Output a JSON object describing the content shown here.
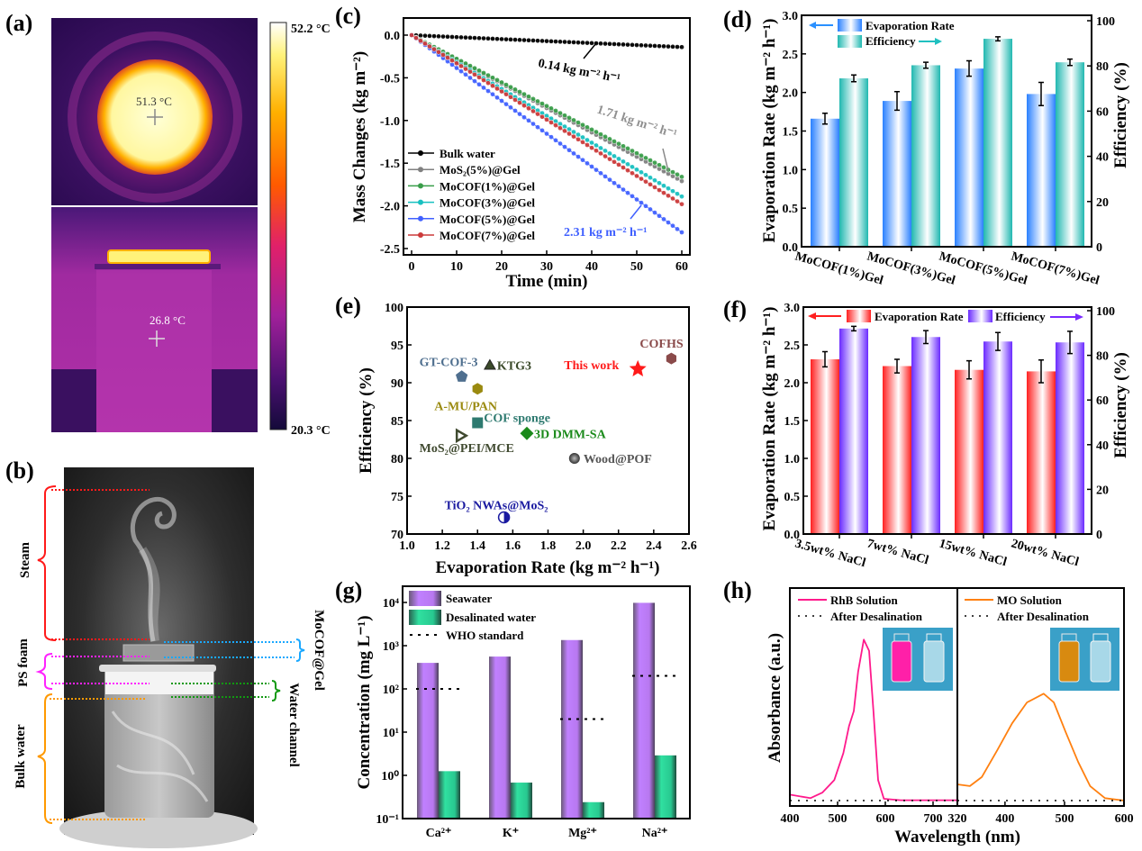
{
  "panel_labels": {
    "a": "(a)",
    "b": "(b)",
    "c": "(c)",
    "d": "(d)",
    "e": "(e)",
    "f": "(f)",
    "g": "(g)",
    "h": "(h)"
  },
  "panel_a": {
    "scale_max": "52.2 °C",
    "scale_min": "20.3 °C",
    "top_spot_temp": "51.3 °C",
    "bottom_spot_temp": "26.8 °C",
    "colormap": [
      "#ffffff",
      "#fff27a",
      "#ffb000",
      "#ff5a00",
      "#e0206a",
      "#a0209a",
      "#4a1070",
      "#140a3a"
    ]
  },
  "panel_b": {
    "labels": {
      "steam": "Steam",
      "ps_foam": "PS foam",
      "bulk_water": "Bulk water",
      "mocof_gel": "MoCOF@Gel",
      "water_channel": "Water channel"
    },
    "colors": {
      "steam": "#ff1a1a",
      "ps_foam": "#ff22ff",
      "bulk_water": "#ff9900",
      "mocof_gel": "#1aa8ff",
      "water_channel": "#119911"
    }
  },
  "chart_data": [
    {
      "panel": "c",
      "type": "line",
      "xlabel": "Time (min)",
      "ylabel": "Mass Changes (kg m⁻²)",
      "xlim": [
        0,
        60
      ],
      "ylim": [
        -2.5,
        0.1
      ],
      "xticks": [
        "0",
        "10",
        "20",
        "30",
        "40",
        "50",
        "60"
      ],
      "yticks": [
        "0.0",
        "-0.5",
        "-1.0",
        "-1.5",
        "-2.0",
        "-2.5"
      ],
      "legend_position": "bottom-left",
      "series": [
        {
          "name": "Bulk water",
          "color": "#000000",
          "x_end": 60,
          "y_end": -0.14
        },
        {
          "name": "MoS₂(5%)@Gel",
          "color": "#808080",
          "x_end": 60,
          "y_end": -1.71
        },
        {
          "name": "MoCOF(1%)@Gel",
          "color": "#3a9e4a",
          "x_end": 60,
          "y_end": -1.66
        },
        {
          "name": "MoCOF(3%)@Gel",
          "color": "#18c0c0",
          "x_end": 60,
          "y_end": -1.89
        },
        {
          "name": "MoCOF(5%)@Gel",
          "color": "#4060ff",
          "x_end": 60,
          "y_end": -2.31
        },
        {
          "name": "MoCOF(7%)@Gel",
          "color": "#cc3a3a",
          "x_end": 60,
          "y_end": -1.98
        }
      ],
      "annotations": [
        {
          "text": "0.14 kg m⁻² h⁻¹",
          "color": "#000000"
        },
        {
          "text": "1.71 kg m⁻² h⁻¹",
          "color": "#909090"
        },
        {
          "text": "2.31 kg m⁻² h⁻¹",
          "color": "#4060ff"
        }
      ]
    },
    {
      "panel": "d",
      "type": "bar",
      "categories": [
        "MoCOF(1%)Gel",
        "MoCOF(3%)Gel",
        "MoCOF(5%)Gel",
        "MoCOF(7%)Gel"
      ],
      "ylabel": "Evaporation Rate (kg m⁻² h⁻¹)",
      "y2label": "Efficiency (%)",
      "ylim": [
        0,
        3.0
      ],
      "y2lim": [
        0,
        100
      ],
      "yticks": [
        "0.0",
        "0.5",
        "1.0",
        "1.5",
        "2.0",
        "2.5",
        "3.0"
      ],
      "y2ticks": [
        "0",
        "20",
        "40",
        "60",
        "80",
        "100"
      ],
      "legend_position": "top-left",
      "series": [
        {
          "name": "Evaporation Rate",
          "axis": "left",
          "color": "#2a80ff",
          "values": [
            1.66,
            1.89,
            2.31,
            1.98
          ],
          "errors": [
            0.07,
            0.12,
            0.1,
            0.15
          ]
        },
        {
          "name": "Efficiency",
          "axis": "right",
          "color": "#20b8b0",
          "values": [
            74.5,
            80.3,
            92.0,
            81.6
          ],
          "errors": [
            1.5,
            1.3,
            0.9,
            1.4
          ]
        }
      ]
    },
    {
      "panel": "e",
      "type": "scatter",
      "xlabel": "Evaporation Rate (kg m⁻² h⁻¹)",
      "ylabel": "Efficiency (%)",
      "xlim": [
        1.0,
        2.6
      ],
      "ylim": [
        70,
        100
      ],
      "xticks": [
        "1.0",
        "1.2",
        "1.4",
        "1.6",
        "1.8",
        "2.0",
        "2.2",
        "2.4",
        "2.6"
      ],
      "yticks": [
        "70",
        "75",
        "80",
        "85",
        "90",
        "95",
        "100"
      ],
      "points": [
        {
          "label": "GT-COF-3",
          "x": 1.31,
          "y": 90.8,
          "marker": "pentagon",
          "color": "#4f6f8f"
        },
        {
          "label": "KTG3",
          "x": 1.47,
          "y": 92.2,
          "marker": "triangle",
          "color": "#3b4a2a"
        },
        {
          "label": "A-MU/PAN",
          "x": 1.4,
          "y": 89.2,
          "marker": "hexagon",
          "color": "#9a8a10"
        },
        {
          "label": "COF sponge",
          "x": 1.4,
          "y": 84.7,
          "marker": "square",
          "color": "#2e7a70"
        },
        {
          "label": "MoS₂@PEI/MCE",
          "x": 1.3,
          "y": 83.0,
          "marker": "triangle-right",
          "color": "#404a30"
        },
        {
          "label": "3D DMM-SA",
          "x": 1.68,
          "y": 83.3,
          "marker": "diamond",
          "color": "#1a8a1a"
        },
        {
          "label": "Wood@POF",
          "x": 1.95,
          "y": 80.0,
          "marker": "circle",
          "color": "#555555"
        },
        {
          "label": "TiO₂ NWAs@MoS₂",
          "x": 1.55,
          "y": 72.2,
          "marker": "half-circle",
          "color": "#1a1aa0"
        },
        {
          "label": "This work",
          "x": 2.31,
          "y": 91.8,
          "marker": "star",
          "color": "#ff1a1a"
        },
        {
          "label": "COFHS",
          "x": 2.5,
          "y": 93.2,
          "marker": "hexagon",
          "color": "#8a4a4a"
        }
      ]
    },
    {
      "panel": "f",
      "type": "bar",
      "categories": [
        "3.5wt% NaCl",
        "7wt% NaCl",
        "15wt% NaCl",
        "20wt% NaCl"
      ],
      "ylabel": "Evaporation Rate (kg m⁻² h⁻¹)",
      "y2label": "Efficiency (%)",
      "ylim": [
        0,
        3.0
      ],
      "y2lim": [
        0,
        100
      ],
      "yticks": [
        "0.0",
        "0.5",
        "1.0",
        "1.5",
        "2.0",
        "2.5",
        "3.0"
      ],
      "y2ticks": [
        "0",
        "20",
        "40",
        "60",
        "80",
        "100"
      ],
      "legend_position": "top",
      "series": [
        {
          "name": "Evaporation Rate",
          "axis": "left",
          "color": "#ff2020",
          "values": [
            2.31,
            2.22,
            2.17,
            2.15
          ],
          "errors": [
            0.1,
            0.09,
            0.12,
            0.15
          ]
        },
        {
          "name": "Efficiency",
          "axis": "right",
          "color": "#6a2aff",
          "values": [
            92.0,
            88.2,
            86.2,
            85.8
          ],
          "errors": [
            1.0,
            2.9,
            4.0,
            5.0
          ]
        }
      ]
    },
    {
      "panel": "g",
      "type": "bar",
      "yscale": "log",
      "categories": [
        "Ca²⁺",
        "K⁺",
        "Mg²⁺",
        "Na²⁺"
      ],
      "ylabel": "Concentration (mg L⁻¹)",
      "ylim": [
        0.1,
        23000
      ],
      "yticks": [
        "10⁻¹",
        "10⁰",
        "10¹",
        "10²",
        "10³",
        "10⁴"
      ],
      "legend_position": "top-left",
      "series": [
        {
          "name": "Seawater",
          "color": "#c080ff",
          "values": [
            400,
            560,
            1350,
            9800
          ]
        },
        {
          "name": "Desalinated water",
          "color": "#30e0a0",
          "values": [
            1.25,
            0.68,
            0.24,
            2.9
          ]
        }
      ],
      "reference": {
        "name": "WHO standard",
        "values": [
          100,
          null,
          20,
          200
        ]
      }
    },
    {
      "panel": "h",
      "type": "line",
      "xlabel": "Wavelength (nm)",
      "ylabel": "Absorbance (a.u.)",
      "subplots": [
        {
          "xlim": [
            400,
            750
          ],
          "xticks": [
            "400",
            "500",
            "600",
            "700"
          ],
          "series": [
            {
              "name": "RhB Solution",
              "color": "#ff1a8c",
              "style": "solid",
              "x": [
                400,
                443,
                468,
                493,
                512,
                524,
                534,
                543,
                555,
                566,
                575,
                585,
                597,
                632,
                750
              ],
              "y": [
                0.037,
                0.015,
                0.049,
                0.127,
                0.295,
                0.463,
                0.556,
                0.8,
                1.0,
                0.93,
                0.556,
                0.127,
                0.011,
                0.002,
                0.002
              ]
            },
            {
              "name": "After Desalination",
              "color": "#000000",
              "style": "dotted",
              "x": [
                400,
                750
              ],
              "y": [
                0,
                0
              ]
            }
          ]
        },
        {
          "xlim": [
            320,
            600
          ],
          "xticks": [
            "320",
            "400",
            "500",
            "600"
          ],
          "series": [
            {
              "name": "MO Solution",
              "color": "#ff8010",
              "style": "solid",
              "x": [
                321,
                341,
                361,
                387,
                412,
                437,
                465,
                482,
                502,
                523,
                543,
                568,
                600
              ],
              "y": [
                0.1,
                0.09,
                0.146,
                0.313,
                0.48,
                0.61,
                0.664,
                0.61,
                0.425,
                0.239,
                0.09,
                0.015,
                0.0
              ]
            },
            {
              "name": "After Desalination",
              "color": "#000000",
              "style": "dotted",
              "x": [
                320,
                600
              ],
              "y": [
                0,
                0
              ]
            }
          ]
        }
      ]
    }
  ]
}
